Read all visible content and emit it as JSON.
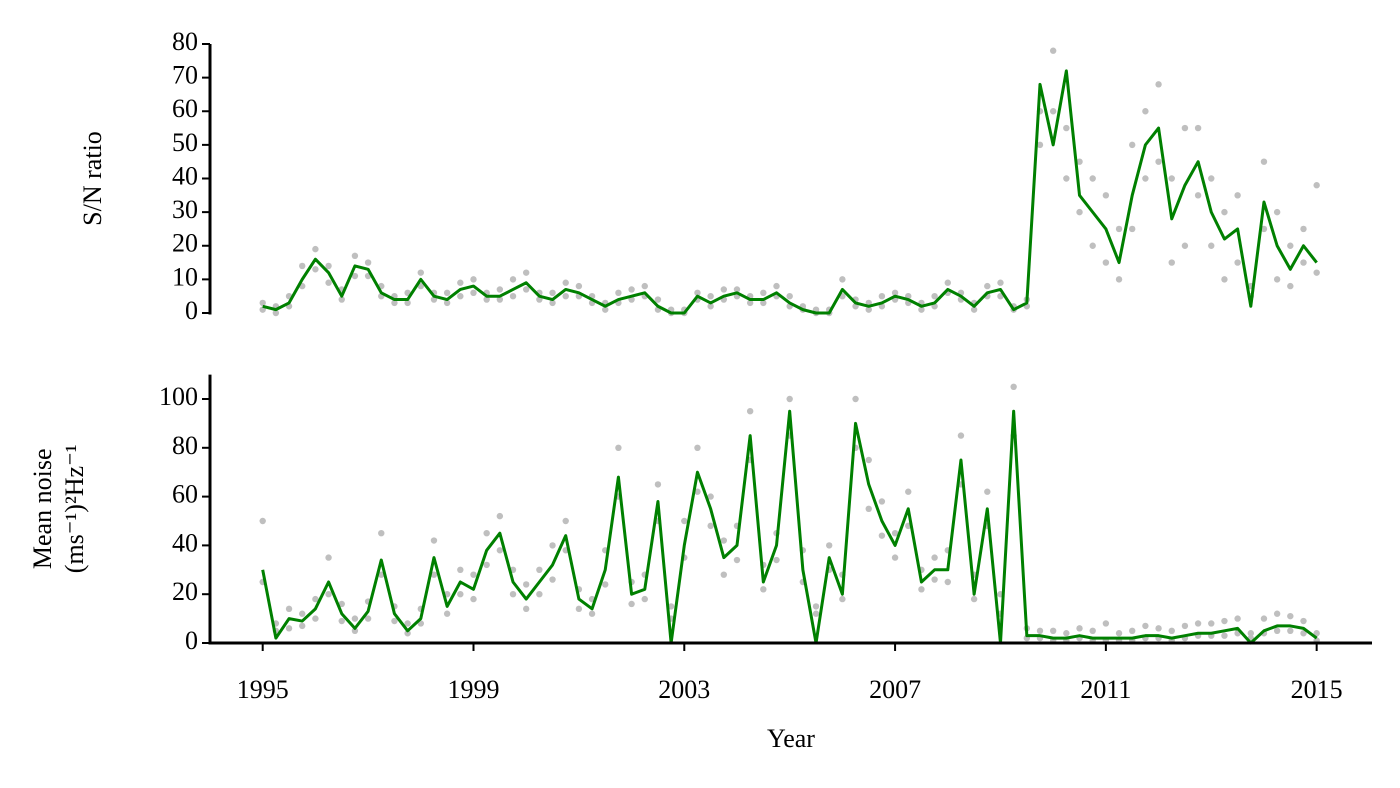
{
  "chart_data": [
    {
      "type": "line",
      "ylabel": "S/N ratio",
      "x": [
        1995,
        1995.25,
        1995.5,
        1995.75,
        1996,
        1996.25,
        1996.5,
        1996.75,
        1997,
        1997.25,
        1997.5,
        1997.75,
        1998,
        1998.25,
        1998.5,
        1998.75,
        1999,
        1999.25,
        1999.5,
        1999.75,
        2000,
        2000.25,
        2000.5,
        2000.75,
        2001,
        2001.25,
        2001.5,
        2001.75,
        2002,
        2002.25,
        2002.5,
        2002.75,
        2003,
        2003.25,
        2003.5,
        2003.75,
        2004,
        2004.25,
        2004.5,
        2004.75,
        2005,
        2005.25,
        2005.5,
        2005.75,
        2006,
        2006.25,
        2006.5,
        2006.75,
        2007,
        2007.25,
        2007.5,
        2007.75,
        2008,
        2008.25,
        2008.5,
        2008.75,
        2009,
        2009.25,
        2009.5,
        2009.75,
        2010,
        2010.25,
        2010.5,
        2010.75,
        2011,
        2011.25,
        2011.5,
        2011.75,
        2012,
        2012.25,
        2012.5,
        2012.75,
        2013,
        2013.25,
        2013.5,
        2013.75,
        2014,
        2014.25,
        2014.5,
        2014.75,
        2015
      ],
      "xlim": [
        1994,
        2016.05
      ],
      "ylim": [
        0,
        80
      ],
      "yticks": [
        0,
        10,
        20,
        30,
        40,
        50,
        60,
        70,
        80
      ],
      "series": [
        {
          "style": "points",
          "color": "#bfbfbf",
          "values": [
            3,
            2,
            5,
            14,
            19,
            9,
            7,
            17,
            11,
            8,
            3,
            6,
            12,
            4,
            6,
            9,
            10,
            4,
            7,
            10,
            12,
            4,
            6,
            9,
            8,
            3,
            3,
            6,
            7,
            8,
            4,
            1,
            1,
            6,
            5,
            7,
            7,
            5,
            6,
            8,
            5,
            2,
            1,
            1,
            10,
            4,
            3,
            5,
            6,
            5,
            3,
            5,
            9,
            6,
            3,
            8,
            9,
            2,
            4,
            60,
            78,
            40,
            45,
            20,
            35,
            10,
            50,
            40,
            68,
            15,
            55,
            35,
            40,
            10,
            35,
            5,
            45,
            10,
            20,
            25,
            38
          ]
        },
        {
          "style": "points",
          "color": "#bfbfbf",
          "values": [
            1,
            0,
            2,
            8,
            13,
            14,
            4,
            11,
            15,
            5,
            5,
            3,
            8,
            6,
            3,
            5,
            6,
            6,
            4,
            5,
            7,
            6,
            3,
            5,
            5,
            5,
            1,
            3,
            4,
            5,
            1,
            0,
            0,
            4,
            2,
            4,
            5,
            3,
            3,
            5,
            2,
            1,
            0,
            0,
            5,
            2,
            1,
            2,
            4,
            3,
            1,
            2,
            6,
            4,
            1,
            5,
            5,
            1,
            2,
            50,
            60,
            55,
            30,
            40,
            15,
            25,
            25,
            60,
            45,
            40,
            20,
            55,
            20,
            30,
            15,
            8,
            25,
            30,
            8,
            15,
            12
          ]
        },
        {
          "style": "line",
          "color": "#008000",
          "values": [
            2,
            1,
            3,
            10,
            16,
            12,
            5,
            14,
            13,
            6,
            4,
            4,
            10,
            5,
            4,
            7,
            8,
            5,
            5,
            7,
            9,
            5,
            4,
            7,
            6,
            4,
            2,
            4,
            5,
            6,
            2,
            0,
            0,
            5,
            3,
            5,
            6,
            4,
            4,
            6,
            3,
            1,
            0,
            0,
            7,
            3,
            2,
            3,
            5,
            4,
            2,
            3,
            7,
            5,
            2,
            6,
            7,
            1,
            3,
            68,
            50,
            72,
            35,
            30,
            25,
            15,
            35,
            50,
            55,
            28,
            38,
            45,
            30,
            22,
            25,
            2,
            33,
            20,
            13,
            20,
            15
          ]
        }
      ]
    },
    {
      "type": "line",
      "ylabel": [
        "Mean noise",
        "(ms⁻¹)²Hz⁻¹"
      ],
      "xlabel": "Year",
      "x": [
        1995,
        1995.25,
        1995.5,
        1995.75,
        1996,
        1996.25,
        1996.5,
        1996.75,
        1997,
        1997.25,
        1997.5,
        1997.75,
        1998,
        1998.25,
        1998.5,
        1998.75,
        1999,
        1999.25,
        1999.5,
        1999.75,
        2000,
        2000.25,
        2000.5,
        2000.75,
        2001,
        2001.25,
        2001.5,
        2001.75,
        2002,
        2002.25,
        2002.5,
        2002.75,
        2003,
        2003.25,
        2003.5,
        2003.75,
        2004,
        2004.25,
        2004.5,
        2004.75,
        2005,
        2005.25,
        2005.5,
        2005.75,
        2006,
        2006.25,
        2006.5,
        2006.75,
        2007,
        2007.25,
        2007.5,
        2007.75,
        2008,
        2008.25,
        2008.5,
        2008.75,
        2009,
        2009.25,
        2009.5,
        2009.75,
        2010,
        2010.25,
        2010.5,
        2010.75,
        2011,
        2011.25,
        2011.5,
        2011.75,
        2012,
        2012.25,
        2012.5,
        2012.75,
        2013,
        2013.25,
        2013.5,
        2013.75,
        2014,
        2014.25,
        2014.5,
        2014.75,
        2015
      ],
      "xlim": [
        1994,
        2016.05
      ],
      "xticks": [
        1995,
        1999,
        2003,
        2007,
        2011,
        2015
      ],
      "ylim": [
        0,
        110
      ],
      "yticks": [
        0,
        20,
        40,
        60,
        80,
        100
      ],
      "series": [
        {
          "style": "points",
          "color": "#bfbfbf",
          "values": [
            50,
            8,
            14,
            12,
            18,
            35,
            16,
            10,
            17,
            45,
            15,
            8,
            14,
            42,
            20,
            30,
            28,
            45,
            52,
            30,
            24,
            30,
            40,
            50,
            22,
            18,
            38,
            80,
            25,
            28,
            65,
            15,
            50,
            80,
            60,
            42,
            48,
            95,
            32,
            45,
            100,
            38,
            15,
            40,
            28,
            100,
            75,
            58,
            45,
            62,
            30,
            35,
            38,
            85,
            28,
            62,
            20,
            105,
            6,
            5,
            5,
            4,
            6,
            5,
            8,
            4,
            5,
            7,
            6,
            5,
            7,
            8,
            8,
            9,
            10,
            4,
            10,
            12,
            11,
            9,
            4
          ]
        },
        {
          "style": "points",
          "color": "#bfbfbf",
          "values": [
            25,
            5,
            6,
            7,
            10,
            20,
            9,
            5,
            10,
            28,
            9,
            4,
            8,
            28,
            12,
            20,
            18,
            32,
            38,
            20,
            14,
            20,
            26,
            38,
            14,
            12,
            24,
            60,
            16,
            18,
            50,
            10,
            35,
            62,
            48,
            28,
            34,
            75,
            22,
            34,
            85,
            25,
            12,
            30,
            18,
            80,
            55,
            44,
            35,
            48,
            22,
            26,
            25,
            65,
            18,
            48,
            12,
            85,
            2,
            2,
            1,
            1,
            2,
            1,
            1,
            1,
            1,
            2,
            2,
            1,
            2,
            3,
            3,
            3,
            4,
            2,
            4,
            5,
            5,
            4,
            1
          ]
        },
        {
          "style": "line",
          "color": "#008000",
          "values": [
            30,
            2,
            10,
            9,
            14,
            25,
            12,
            6,
            13,
            34,
            12,
            5,
            10,
            35,
            15,
            25,
            22,
            38,
            45,
            25,
            18,
            25,
            32,
            44,
            18,
            14,
            30,
            68,
            20,
            22,
            58,
            0,
            40,
            70,
            55,
            35,
            40,
            85,
            25,
            40,
            95,
            30,
            0,
            35,
            20,
            90,
            65,
            50,
            40,
            55,
            25,
            30,
            30,
            75,
            20,
            55,
            0,
            95,
            3,
            3,
            2,
            2,
            3,
            2,
            2,
            2,
            2,
            3,
            3,
            2,
            3,
            4,
            4,
            5,
            6,
            0,
            5,
            7,
            7,
            6,
            2
          ]
        }
      ]
    }
  ]
}
